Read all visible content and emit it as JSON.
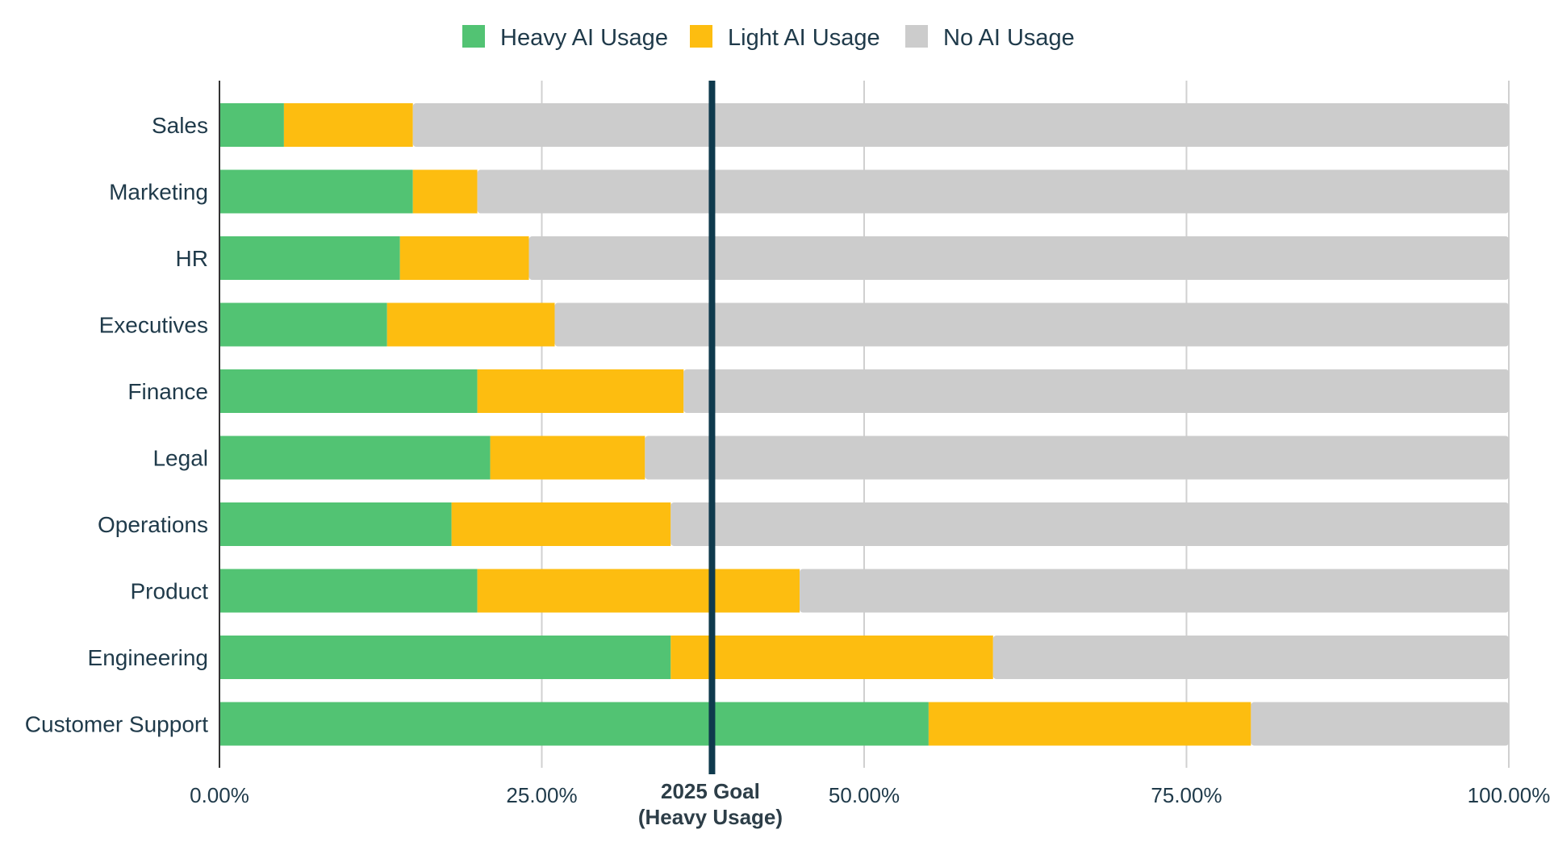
{
  "chart_data": {
    "type": "bar",
    "orientation": "horizontal",
    "stacked": true,
    "categories": [
      "Sales",
      "Marketing",
      "HR",
      "Executives",
      "Finance",
      "Legal",
      "Operations",
      "Product",
      "Engineering",
      "Customer Support"
    ],
    "series": [
      {
        "name": "Heavy AI Usage",
        "color": "#52c373",
        "values": [
          5,
          15,
          14,
          13,
          20,
          21,
          18,
          20,
          35,
          55
        ]
      },
      {
        "name": "Light AI Usage",
        "color": "#fdbd10",
        "values": [
          10,
          5,
          10,
          13,
          16,
          12,
          17,
          25,
          25,
          25
        ]
      },
      {
        "name": "No AI Usage",
        "color": "#cccccc",
        "values": [
          85,
          80,
          76,
          74,
          64,
          67,
          65,
          55,
          40,
          20
        ]
      }
    ],
    "xlim": [
      0,
      100
    ],
    "xticks": [
      0,
      25,
      50,
      75,
      100
    ],
    "xtick_labels": [
      "0.00%",
      "25.00%",
      "50.00%",
      "75.00%",
      "100.00%"
    ],
    "grid": true,
    "legend_position": "top-center",
    "reference_line": {
      "value": 38.2,
      "label_line1": "2025 Goal",
      "label_line2": "(Heavy Usage)",
      "color": "#0f3a4d"
    }
  }
}
